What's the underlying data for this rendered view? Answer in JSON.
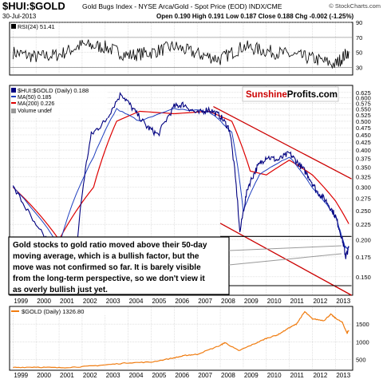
{
  "header": {
    "symbol": "$HUI:$GOLD",
    "description": "Gold Bugs Index - NYSE Arca/Gold - Spot Price (EOD) INDX/CME",
    "watermark": "© StockCharts.com",
    "date": "30-Jul-2013",
    "quote": "Open 0.190  High 0.191  Low 0.187  Close 0.188  Chg -0.002 (-1.25%)",
    "quote_change_color": "#cc0000"
  },
  "colors": {
    "price": "#000080",
    "ma50": "#1f3fbf",
    "ma200": "#dd0000",
    "channel": "#cc0000",
    "gold": "#f07c10",
    "grid": "#d0d0d0",
    "label_box": "#c8d8f0",
    "brand_red": "#cc0000"
  },
  "brand": {
    "part1": "Sunshine",
    "part2": "Profits",
    "part3": ".com"
  },
  "annotation": {
    "lines": [
      "Gold stocks to gold ratio moved above their 50-day",
      "moving average, which is a bullish factor, but the",
      "move was not confirmed so far. It is barely visible",
      "from the long-term perspective, so we don't view it",
      "as overly bullish just yet."
    ]
  },
  "chart_data": [
    {
      "type": "line",
      "panel": "rsi",
      "title": "RSI(24) 51.41",
      "series": [
        {
          "name": "RSI(24)",
          "last": 51.41,
          "x": [
            1999.0,
            2000.0,
            2001.0,
            2002.0,
            2003.0,
            2004.0,
            2005.0,
            2006.0,
            2007.0,
            2008.0,
            2009.0,
            2010.0,
            2011.0,
            2012.0,
            2013.0,
            2013.58
          ],
          "values": [
            50,
            44,
            47,
            60,
            57,
            46,
            50,
            58,
            48,
            41,
            58,
            52,
            47,
            42,
            34,
            51.41
          ]
        }
      ],
      "ylim": [
        20,
        90
      ],
      "yticks": [
        30,
        50,
        70,
        90
      ],
      "yticks_visible": [
        "30",
        "50",
        "70",
        "90"
      ]
    },
    {
      "type": "line",
      "panel": "main",
      "title": "$HUI:$GOLD (Daily) 0.188",
      "scale": "log",
      "series": [
        {
          "name": "$HUI:$GOLD (Daily)",
          "last": 0.188,
          "x": [
            1999.0,
            2000.0,
            2001.0,
            2001.8,
            2002.4,
            2003.0,
            2003.7,
            2004.2,
            2004.8,
            2005.3,
            2006.0,
            2006.4,
            2007.0,
            2007.5,
            2008.0,
            2008.4,
            2008.85,
            2009.2,
            2009.6,
            2010.0,
            2010.5,
            2011.0,
            2011.4,
            2011.8,
            2012.2,
            2012.6,
            2013.0,
            2013.3,
            2013.45,
            2013.58
          ],
          "values": [
            0.3,
            0.22,
            0.18,
            0.2,
            0.45,
            0.5,
            0.62,
            0.55,
            0.48,
            0.45,
            0.56,
            0.57,
            0.53,
            0.55,
            0.52,
            0.47,
            0.21,
            0.3,
            0.35,
            0.38,
            0.37,
            0.39,
            0.36,
            0.33,
            0.29,
            0.27,
            0.24,
            0.2,
            0.175,
            0.188
          ]
        },
        {
          "name": "MA(50)",
          "last": 0.185,
          "x": [
            1999.0,
            2001.0,
            2002.5,
            2003.5,
            2004.5,
            2006.0,
            2007.5,
            2008.5,
            2009.0,
            2009.7,
            2011.0,
            2012.0,
            2013.0,
            2013.4,
            2013.58
          ],
          "values": [
            0.3,
            0.19,
            0.38,
            0.55,
            0.5,
            0.55,
            0.54,
            0.46,
            0.25,
            0.33,
            0.38,
            0.3,
            0.24,
            0.19,
            0.185
          ]
        },
        {
          "name": "MA(200)",
          "last": 0.226,
          "x": [
            1999.0,
            2001.0,
            2002.5,
            2003.5,
            2004.5,
            2006.0,
            2007.5,
            2008.5,
            2009.3,
            2010.0,
            2011.0,
            2012.0,
            2013.0,
            2013.58
          ],
          "values": [
            0.3,
            0.2,
            0.3,
            0.5,
            0.54,
            0.53,
            0.54,
            0.5,
            0.34,
            0.33,
            0.37,
            0.33,
            0.27,
            0.226
          ]
        },
        {
          "name": "Volume undef"
        }
      ],
      "ylim": [
        0.13,
        0.66
      ],
      "yticks": [
        0.15,
        0.175,
        0.2,
        0.225,
        0.25,
        0.275,
        0.3,
        0.325,
        0.35,
        0.375,
        0.4,
        0.425,
        0.45,
        0.475,
        0.5,
        0.525,
        0.55,
        0.575,
        0.6,
        0.625
      ],
      "yticks_visible": [
        "0.150",
        "0.175",
        "0.200",
        "0.225",
        "0.250",
        "0.275",
        "0.300",
        "0.325",
        "0.350",
        "0.375",
        "0.400",
        "0.425",
        "0.450",
        "0.475",
        "0.500",
        "0.525",
        "0.550",
        "0.575",
        "0.600",
        "0.625"
      ],
      "trendlines": [
        {
          "x": [
            2007.7,
            2013.7
          ],
          "values": [
            0.56,
            0.32
          ]
        },
        {
          "x": [
            2008.0,
            2013.7
          ],
          "values": [
            0.227,
            0.13
          ]
        },
        {
          "x": [
            2008.0,
            2013.7
          ],
          "values": [
            0.205,
            0.205
          ]
        },
        {
          "x": [
            2006.5,
            2013.7
          ],
          "values": [
            0.14,
            0.14
          ]
        }
      ]
    },
    {
      "type": "line",
      "panel": "gold",
      "title": "$GOLD (Daily) 1326.80",
      "series": [
        {
          "name": "$GOLD (Daily)",
          "last": 1326.8,
          "x": [
            1999.0,
            2000.0,
            2001.0,
            2002.0,
            2003.0,
            2004.0,
            2005.0,
            2006.0,
            2006.5,
            2007.0,
            2008.0,
            2008.2,
            2008.8,
            2009.5,
            2010.0,
            2010.5,
            2011.0,
            2011.3,
            2011.67,
            2012.0,
            2012.5,
            2012.8,
            2013.0,
            2013.3,
            2013.5,
            2013.58
          ],
          "values": [
            280,
            290,
            270,
            300,
            350,
            410,
            430,
            550,
            620,
            650,
            900,
            980,
            750,
            950,
            1100,
            1200,
            1400,
            1500,
            1850,
            1650,
            1600,
            1780,
            1670,
            1550,
            1250,
            1326.8
          ]
        }
      ],
      "ylim": [
        200,
        2000
      ],
      "yticks": [
        500,
        1000,
        1500
      ],
      "yticks_visible": [
        "500",
        "1000",
        "1500"
      ]
    }
  ],
  "x_axis": {
    "range": [
      1998.85,
      2013.75
    ],
    "ticks": [
      1999,
      2000,
      2001,
      2002,
      2003,
      2004,
      2005,
      2006,
      2007,
      2008,
      2009,
      2010,
      2011,
      2012,
      2013
    ],
    "labels": [
      "1999",
      "2000",
      "2001",
      "2002",
      "2003",
      "2004",
      "2005",
      "2006",
      "2007",
      "2008",
      "2009",
      "2010",
      "2011",
      "2012",
      "2013"
    ]
  }
}
